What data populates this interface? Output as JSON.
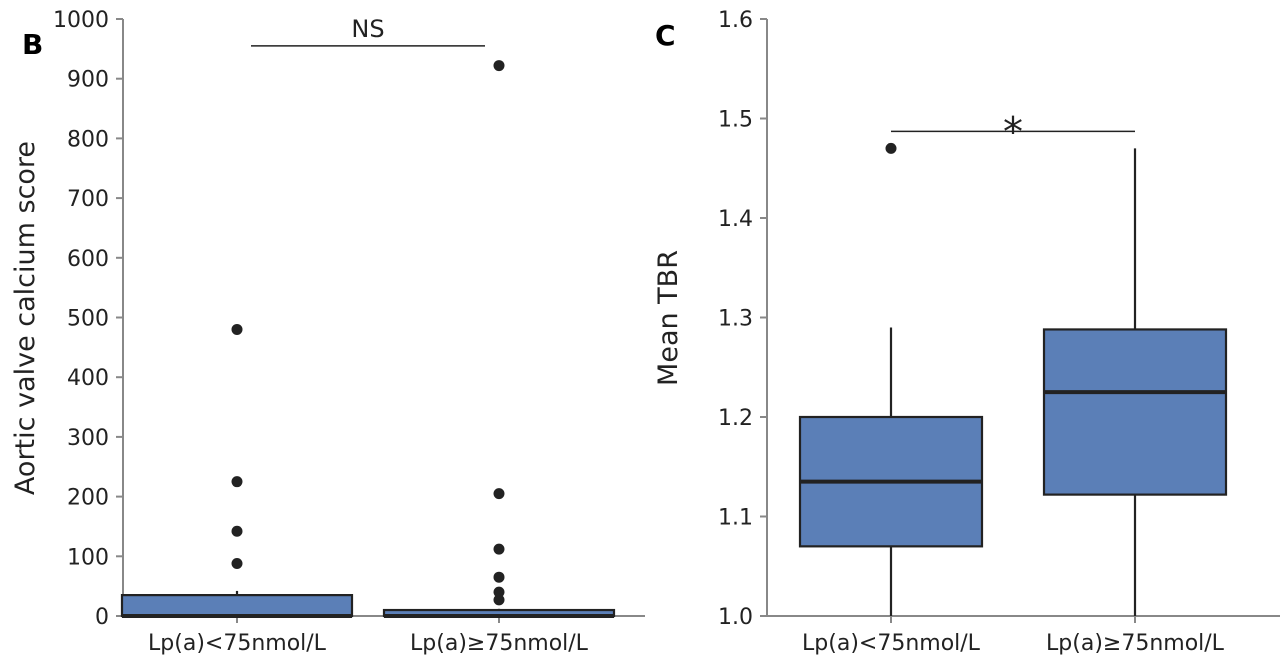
{
  "chart_data": [
    {
      "type": "box",
      "panel_label": "B",
      "title": "",
      "xlabel": "",
      "ylabel": "Aortic valve calcium score",
      "ylim": [
        0,
        1000
      ],
      "yticks": [
        0,
        100,
        200,
        300,
        400,
        500,
        600,
        700,
        800,
        900,
        1000
      ],
      "categories": [
        "Lp(a)<75nmol/L",
        "Lp(a)≥75nmol/L"
      ],
      "boxes": [
        {
          "q1": 0,
          "median": 0,
          "q3": 35,
          "whisker_low": 0,
          "whisker_high": 42,
          "outliers": [
            88,
            142,
            225,
            480
          ]
        },
        {
          "q1": 0,
          "median": 0,
          "q3": 10,
          "whisker_low": 0,
          "whisker_high": 12,
          "outliers": [
            27,
            40,
            65,
            112,
            205,
            922
          ]
        }
      ],
      "significance": {
        "text": "NS",
        "value": 955
      }
    },
    {
      "type": "box",
      "panel_label": "C",
      "title": "",
      "xlabel": "",
      "ylabel": "Mean TBR",
      "ylim": [
        1.0,
        1.6
      ],
      "yticks": [
        1.0,
        1.1,
        1.2,
        1.3,
        1.4,
        1.5,
        1.6
      ],
      "categories": [
        "Lp(a)<75nmol/L",
        "Lp(a)≥75nmol/L"
      ],
      "boxes": [
        {
          "q1": 1.07,
          "median": 1.135,
          "q3": 1.2,
          "whisker_low": 1.0,
          "whisker_high": 1.29,
          "outliers": [
            1.47
          ]
        },
        {
          "q1": 1.122,
          "median": 1.225,
          "q3": 1.288,
          "whisker_low": 1.0,
          "whisker_high": 1.47,
          "outliers": []
        }
      ],
      "significance": {
        "text": "*",
        "value": 1.487
      }
    }
  ],
  "colors": {
    "box_fill": "#5b7fb7",
    "edge": "#222222",
    "axis": "#888888",
    "outlier": "#222222"
  }
}
